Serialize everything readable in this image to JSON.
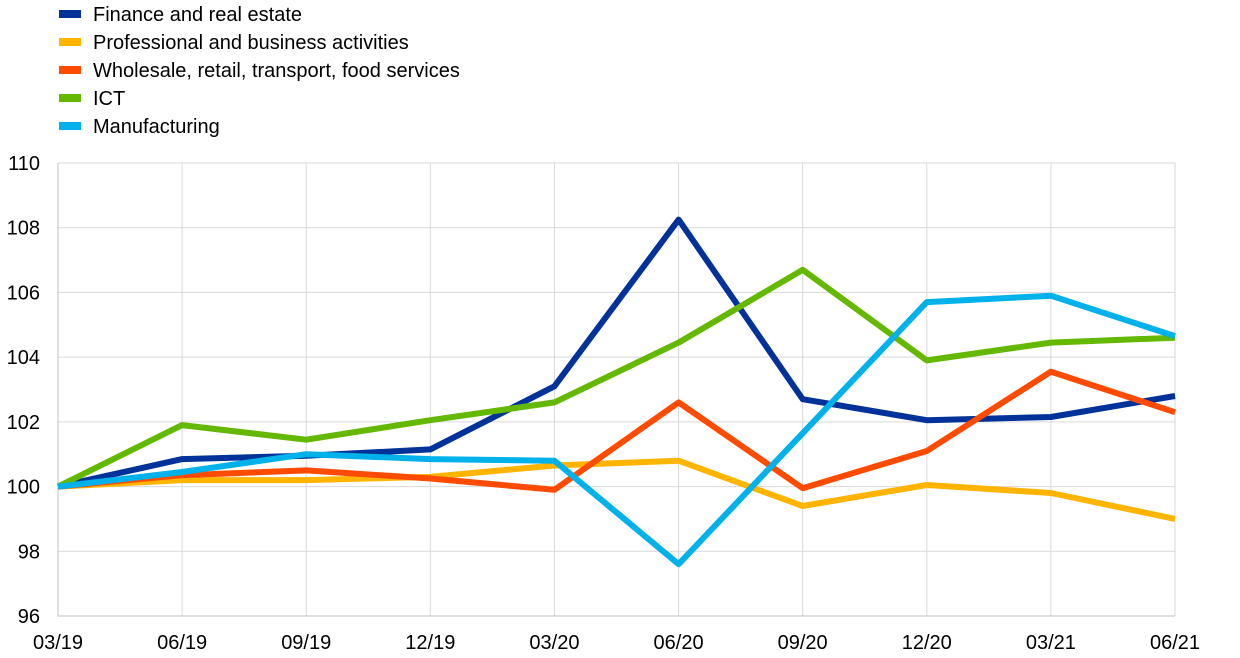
{
  "chart_data": {
    "type": "line",
    "title": "",
    "xlabel": "",
    "ylabel": "",
    "ylim": [
      96,
      110
    ],
    "yticks": [
      96,
      98,
      100,
      102,
      104,
      106,
      108,
      110
    ],
    "categories": [
      "03/19",
      "06/19",
      "09/19",
      "12/19",
      "03/20",
      "06/20",
      "09/20",
      "12/20",
      "03/21",
      "06/21"
    ],
    "grid": true,
    "legend_position": "top-left",
    "series": [
      {
        "name": "Finance and real estate",
        "color": "#003299",
        "values": [
          100.0,
          100.85,
          100.95,
          101.15,
          103.1,
          108.25,
          102.7,
          102.05,
          102.15,
          102.8
        ]
      },
      {
        "name": "Professional and business activities",
        "color": "#FFB400",
        "values": [
          100.0,
          100.2,
          100.2,
          100.3,
          100.65,
          100.8,
          99.4,
          100.05,
          99.8,
          99.0
        ]
      },
      {
        "name": "Wholesale, retail, transport, food services",
        "color": "#FF4B00",
        "values": [
          100.0,
          100.35,
          100.5,
          100.25,
          99.9,
          102.6,
          99.95,
          101.1,
          103.55,
          102.3
        ]
      },
      {
        "name": "ICT",
        "color": "#65B800",
        "values": [
          100.0,
          101.9,
          101.45,
          102.05,
          102.6,
          104.45,
          106.7,
          103.9,
          104.45,
          104.6
        ]
      },
      {
        "name": "Manufacturing",
        "color": "#00B1EA",
        "values": [
          100.0,
          100.45,
          101.0,
          100.85,
          100.8,
          97.6,
          101.65,
          105.7,
          105.9,
          104.65
        ]
      }
    ]
  }
}
